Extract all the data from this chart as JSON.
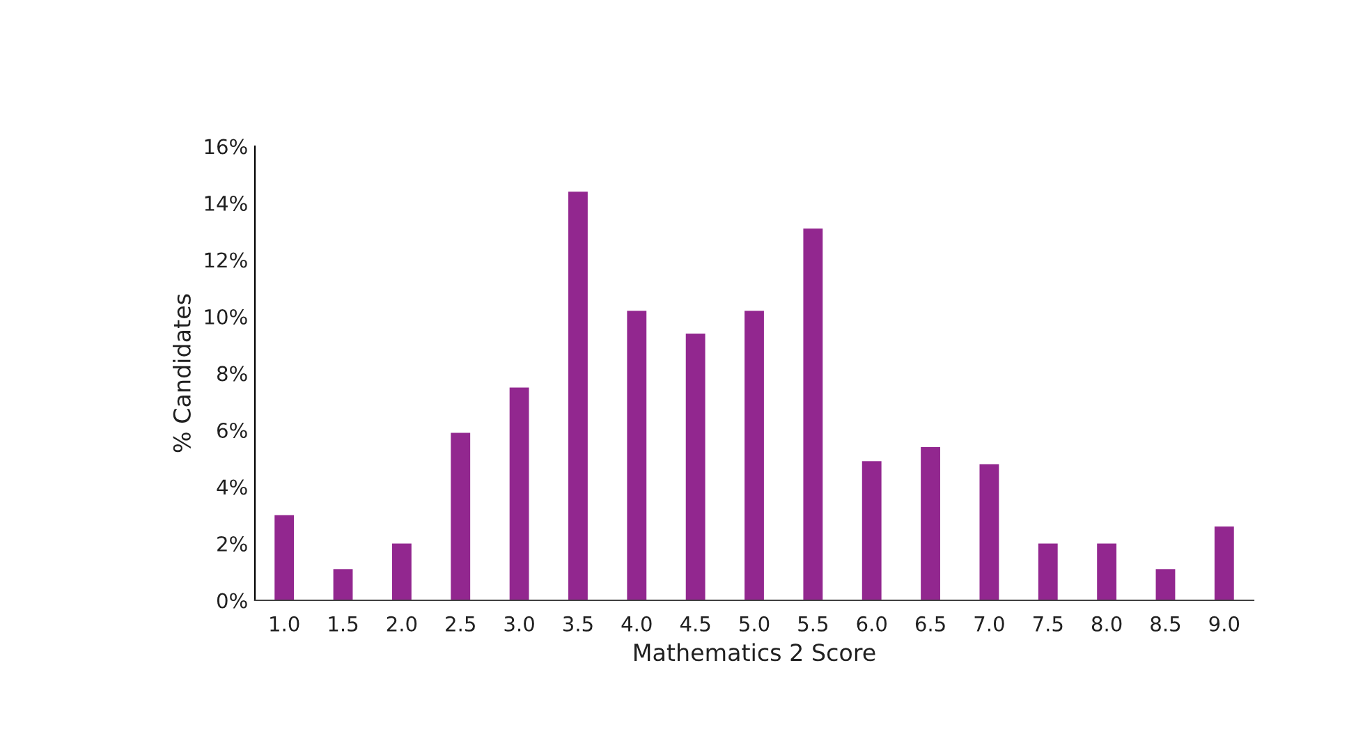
{
  "chart_data": {
    "type": "bar",
    "xlabel": "Mathematics 2 Score",
    "ylabel": "% Candidates",
    "categories": [
      "1.0",
      "1.5",
      "2.0",
      "2.5",
      "3.0",
      "3.5",
      "4.0",
      "4.5",
      "5.0",
      "5.5",
      "6.0",
      "6.5",
      "7.0",
      "7.5",
      "8.0",
      "8.5",
      "9.0"
    ],
    "values": [
      3.0,
      1.1,
      2.0,
      5.9,
      7.5,
      14.4,
      10.2,
      9.4,
      10.2,
      13.1,
      4.9,
      5.4,
      4.8,
      2.0,
      2.0,
      1.1,
      2.6
    ],
    "color": "#92278f",
    "ylim": [
      0,
      16
    ],
    "yticks": [
      {
        "value": 0,
        "label": "0%"
      },
      {
        "value": 2,
        "label": "2%"
      },
      {
        "value": 4,
        "label": "4%"
      },
      {
        "value": 6,
        "label": "6%"
      },
      {
        "value": 8,
        "label": "8%"
      },
      {
        "value": 10,
        "label": "10%"
      },
      {
        "value": 12,
        "label": "12%"
      },
      {
        "value": 14,
        "label": "14%"
      },
      {
        "value": 16,
        "label": "16%"
      }
    ],
    "grid": false
  }
}
